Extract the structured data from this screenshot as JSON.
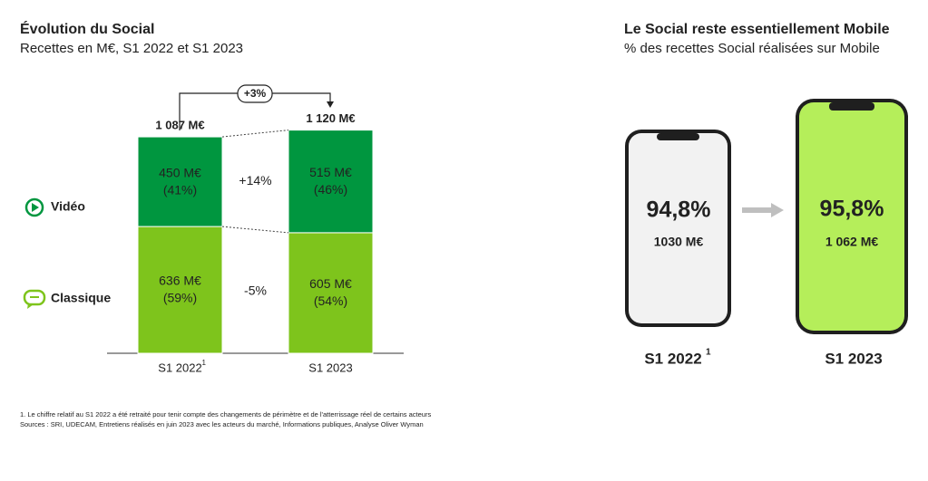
{
  "chart_data": {
    "type": "stacked_bar",
    "title": "Évolution du Social",
    "subtitle": "Recettes en M€, S1 2022 et S1 2023",
    "categories": [
      "S1 2022",
      "S1 2023"
    ],
    "category_superscripts": [
      "1",
      null
    ],
    "ylim": [
      0,
      1200
    ],
    "series": [
      {
        "name": "Classique",
        "color": "#7ec41c",
        "values": [
          636,
          605
        ],
        "value_labels": [
          "636 M€",
          "605 M€"
        ],
        "shares": [
          {
            "value": 59,
            "label": "(59%)"
          },
          {
            "value": 54,
            "label": "(54%)"
          }
        ],
        "growth": {
          "value": -5,
          "label": "-5%"
        }
      },
      {
        "name": "Vidéo",
        "color": "#00963f",
        "values": [
          450,
          515
        ],
        "value_labels": [
          "450 M€",
          "515 M€"
        ],
        "shares": [
          {
            "value": 41,
            "label": "(41%)"
          },
          {
            "value": 46,
            "label": "(46%)"
          }
        ],
        "growth": {
          "value": 14,
          "label": "+14%"
        }
      }
    ],
    "totals": [
      {
        "value": 1087,
        "label": "1 087 M€"
      },
      {
        "value": 1120,
        "label": "1 120 M€"
      }
    ],
    "total_growth": {
      "value": 3,
      "label": "+3%"
    }
  },
  "mobile_panel": {
    "title": "Le Social reste essentiellement Mobile",
    "subtitle": "% des recettes Social réalisées sur Mobile",
    "phones": [
      {
        "label": "S1 2022",
        "superscript": "1",
        "share": {
          "value": 94.8,
          "label": "94,8%"
        },
        "amount": {
          "value": 1030,
          "label": "1030 M€"
        }
      },
      {
        "label": "S1 2023",
        "share": {
          "value": 95.8,
          "label": "95,8%"
        },
        "amount": {
          "value": 1062,
          "label": "1 062 M€"
        }
      }
    ]
  },
  "footnotes": [
    "1. Le chiffre relatif au S1 2022 a été retraité pour tenir compte des changements de périmètre et de l'atterrissage réel de certains acteurs",
    "Sources : SRI, UDECAM, Entretiens réalisés en juin 2023 avec les acteurs du marché, Informations publiques, Analyse Oliver Wyman"
  ]
}
